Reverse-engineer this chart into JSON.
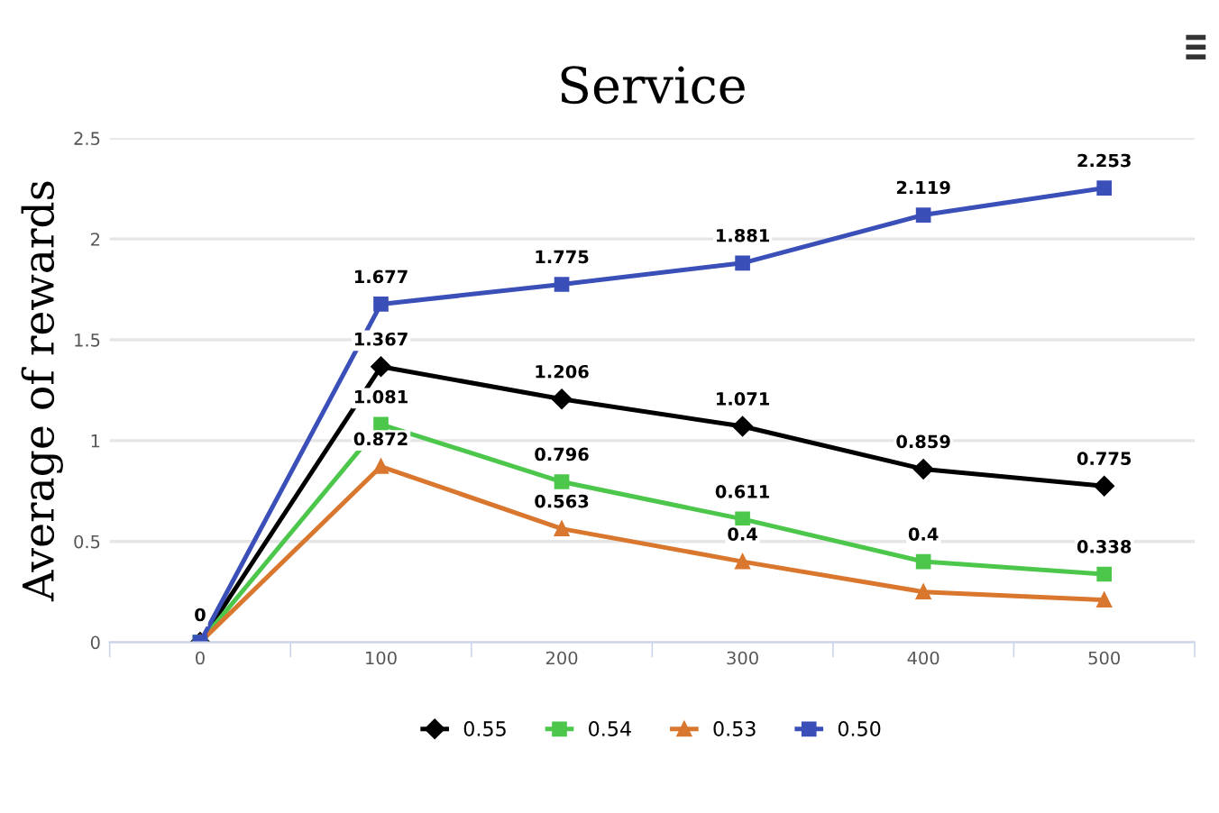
{
  "chart_data": {
    "type": "line",
    "title": "Service",
    "ylabel": "Average of rewards",
    "categories": [
      "0",
      "100",
      "200",
      "300",
      "400",
      "500"
    ],
    "series": [
      {
        "name": "0.55",
        "color": "#000000",
        "marker": "diamond",
        "values": [
          0,
          1.367,
          1.206,
          1.071,
          0.859,
          0.775
        ],
        "value_labels": [
          null,
          "1.367",
          "1.206",
          "1.071",
          "0.859",
          "0.775"
        ]
      },
      {
        "name": "0.54",
        "color": "#4cc74c",
        "marker": "square",
        "values": [
          0,
          1.081,
          0.796,
          0.611,
          0.4,
          0.338
        ],
        "value_labels": [
          null,
          "1.081",
          "0.796",
          "0.611",
          "0.4",
          "0.338"
        ]
      },
      {
        "name": "0.53",
        "color": "#d9772e",
        "marker": "triangle",
        "values": [
          0,
          0.872,
          0.563,
          0.4,
          0.25,
          0.21
        ],
        "value_labels": [
          null,
          "0.872",
          "0.563",
          "0.4",
          null,
          null
        ]
      },
      {
        "name": "0.50",
        "color": "#3a4fb8",
        "marker": "square",
        "values": [
          0,
          1.677,
          1.775,
          1.881,
          2.119,
          2.253
        ],
        "value_labels": [
          "0",
          "1.677",
          "1.775",
          "1.881",
          "2.119",
          "2.253"
        ]
      }
    ],
    "ylim": [
      0,
      2.5
    ],
    "yticks": [
      0,
      0.5,
      1,
      1.5,
      2,
      2.5
    ],
    "grid": "y",
    "legend": "bottom",
    "line_style": "solid"
  }
}
